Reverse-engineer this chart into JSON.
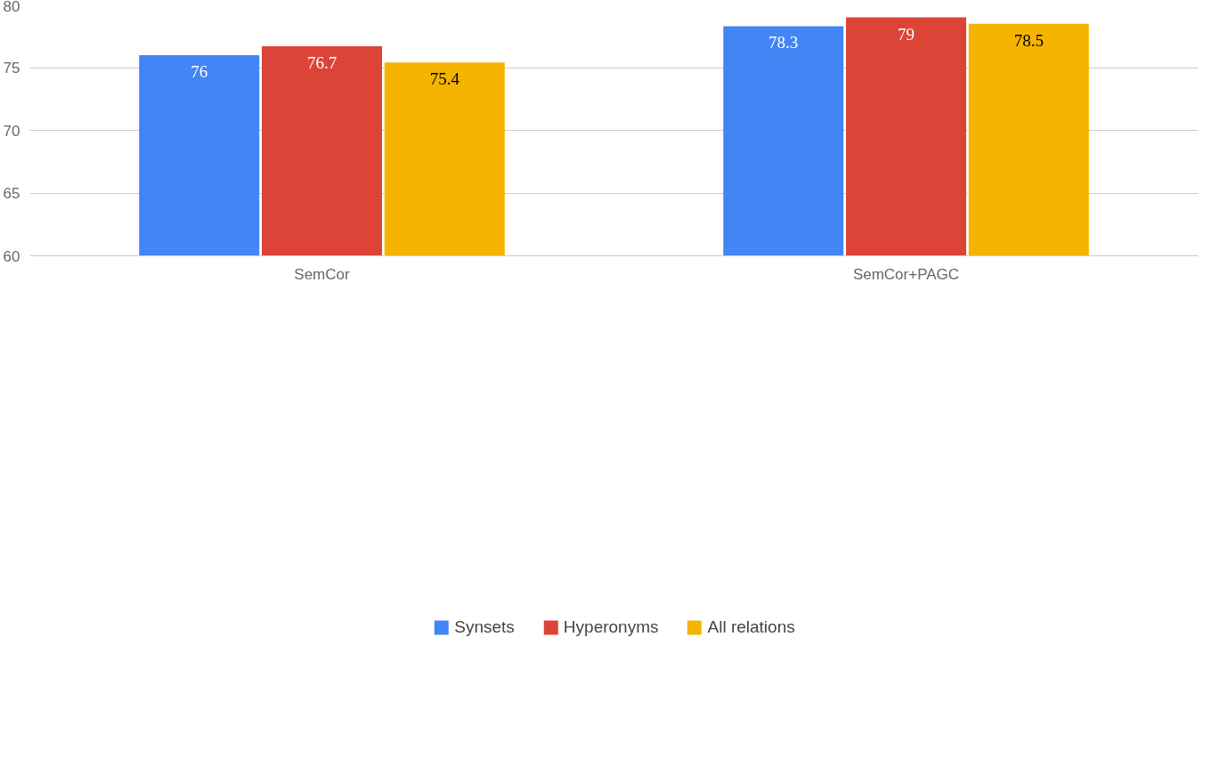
{
  "chart_data": {
    "type": "bar",
    "categories": [
      "SemCor",
      "SemCor+PAGC"
    ],
    "series": [
      {
        "name": "Synsets",
        "color": "#4285f4",
        "values": [
          76,
          78.3
        ]
      },
      {
        "name": "Hyperonyms",
        "color": "#db4437",
        "values": [
          76.7,
          79
        ]
      },
      {
        "name": "All relations",
        "color": "#f4b400",
        "values": [
          75.4,
          78.5
        ]
      }
    ],
    "ylim": [
      60,
      80
    ],
    "yticks": [
      60,
      65,
      70,
      75,
      80
    ],
    "grid": "y",
    "legend": "bottom",
    "data_labels": true
  }
}
